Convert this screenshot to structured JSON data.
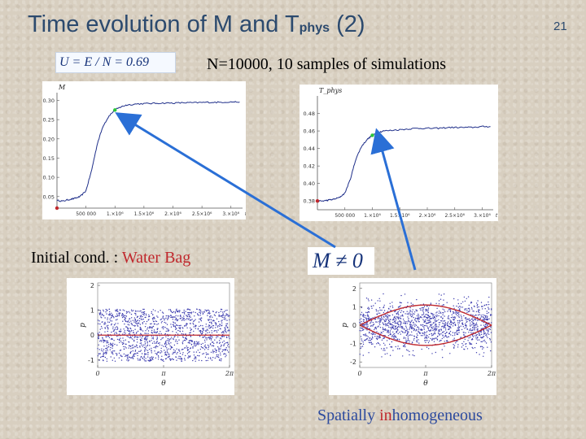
{
  "slide": {
    "title_main": "Time evolution of M and T",
    "title_sub": "phys",
    "title_tail": "(2)",
    "page_number": "21",
    "formula": "U = E / N = 0.69",
    "nsamples": "N=10000, 10 samples of simulations",
    "initcond_prefix": "Initial cond. : ",
    "initcond_value": "Water Bag",
    "m_neq_zero": "M ≠ 0",
    "spatial_prefix": "Spatially ",
    "spatial_red": "in",
    "spatial_tail": "homogeneous"
  },
  "colors": {
    "title": "#2c4a6e",
    "accent_red": "#c0282d",
    "curve_blue": "#1f2f8a",
    "arrow_blue": "#2a6fd6",
    "dot_green": "#2bc63a",
    "scatter": "#3f3fb0"
  },
  "chart_data": [
    {
      "type": "line",
      "ylabel": "M",
      "x_ticks": [
        "500 000",
        "1.×10⁶",
        "1.5×10⁶",
        "2.×10⁶",
        "2.5×10⁶",
        "3.×10⁶",
        "t"
      ],
      "y_ticks": [
        "0.05",
        "0.10",
        "0.15",
        "0.20",
        "0.25",
        "0.30"
      ],
      "xlim": [
        0,
        3200000
      ],
      "ylim": [
        0.02,
        0.32
      ],
      "series": [
        {
          "x": [
            0,
            100000,
            200000,
            300000,
            400000,
            500000,
            600000,
            700000,
            800000,
            900000,
            1000000,
            1100000,
            1200000,
            1400000,
            1600000,
            1800000,
            2000000,
            2200000,
            2400000,
            2600000,
            2800000,
            3000000,
            3150000
          ],
          "values": [
            0.04,
            0.038,
            0.042,
            0.045,
            0.05,
            0.065,
            0.12,
            0.19,
            0.235,
            0.26,
            0.275,
            0.283,
            0.288,
            0.291,
            0.292,
            0.293,
            0.293,
            0.294,
            0.294,
            0.295,
            0.295,
            0.296,
            0.296
          ]
        }
      ],
      "markers": [
        {
          "x": 0,
          "y": 0.02,
          "color": "red"
        },
        {
          "x": 1000000,
          "y": 0.275,
          "color": "green"
        }
      ]
    },
    {
      "type": "line",
      "ylabel": "T_phys",
      "x_ticks": [
        "500 000",
        "1.×10⁶",
        "1.5×10⁶",
        "2.×10⁶",
        "2.5×10⁶",
        "3.×10⁶",
        "t"
      ],
      "y_ticks": [
        "0.38",
        "0.40",
        "0.42",
        "0.44",
        "0.46",
        "0.48"
      ],
      "xlim": [
        0,
        3200000
      ],
      "ylim": [
        0.37,
        0.5
      ],
      "series": [
        {
          "x": [
            0,
            100000,
            200000,
            300000,
            400000,
            500000,
            600000,
            700000,
            800000,
            900000,
            1000000,
            1100000,
            1200000,
            1400000,
            1600000,
            1800000,
            2000000,
            2200000,
            2400000,
            2600000,
            2800000,
            3000000,
            3150000
          ],
          "values": [
            0.38,
            0.38,
            0.381,
            0.382,
            0.384,
            0.389,
            0.405,
            0.428,
            0.442,
            0.45,
            0.455,
            0.458,
            0.46,
            0.461,
            0.462,
            0.463,
            0.463,
            0.463,
            0.464,
            0.464,
            0.464,
            0.465,
            0.465
          ]
        }
      ],
      "markers": [
        {
          "x": 0,
          "y": 0.38,
          "color": "red"
        },
        {
          "x": 1000000,
          "y": 0.455,
          "color": "green"
        }
      ]
    },
    {
      "type": "scatter",
      "xlabel": "θ",
      "ylabel": "p",
      "x_ticks": [
        "0",
        "π",
        "2π"
      ],
      "y_ticks": [
        "-1",
        "0",
        "1",
        "2"
      ],
      "xlim": [
        0,
        6.283
      ],
      "ylim": [
        -1.3,
        2.1
      ],
      "band": [
        -1.05,
        1.05
      ],
      "overlay_line": 0
    },
    {
      "type": "scatter",
      "xlabel": "θ",
      "ylabel": "p",
      "x_ticks": [
        "0",
        "π",
        "2π"
      ],
      "y_ticks": [
        "-2",
        "-1",
        "0",
        "1",
        "2"
      ],
      "xlim": [
        0,
        6.283
      ],
      "ylim": [
        -2.3,
        2.3
      ],
      "separatrix_amplitude": 1.1
    }
  ]
}
